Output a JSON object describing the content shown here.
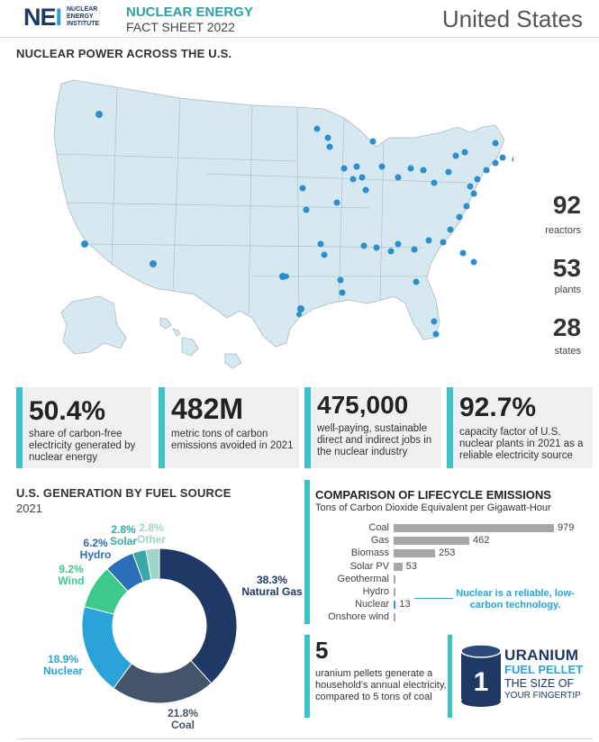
{
  "header": {
    "logo_mark": "NEI",
    "logo_text": "NUCLEAR ENERGY INSTITUTE",
    "title": "NUCLEAR ENERGY",
    "subtitle": "FACT SHEET 2022",
    "country": "United States"
  },
  "map": {
    "title": "NUCLEAR POWER ACROSS THE U.S.",
    "stats": [
      {
        "value": "92",
        "label": "reactors"
      },
      {
        "value": "53",
        "label": "plants"
      },
      {
        "value": "28",
        "label": "states"
      }
    ],
    "colors": {
      "land": "#d6e8f0",
      "border": "#a9b9c4",
      "marker": "#2a8fcc"
    }
  },
  "key_stats": [
    {
      "value": "50.4%",
      "desc": "share of carbon-free electricity generated by nuclear energy"
    },
    {
      "value": "482M",
      "desc": "metric tons of carbon emissions avoided in 2021"
    },
    {
      "value": "475,000",
      "desc": "well-paying, sustainable direct and indirect jobs in the nuclear industry"
    },
    {
      "value": "92.7%",
      "desc": "capacity factor of U.S. nuclear plants in 2021 as a reliable electricity source"
    }
  ],
  "generation": {
    "title": "U.S. GENERATION BY FUEL SOURCE",
    "year": "2021"
  },
  "emissions": {
    "title": "COMPARISON OF LIFECYCLE EMISSIONS",
    "subtitle": "Tons of Carbon Dioxide Equivalent per Gigawatt-Hour",
    "note": "Nuclear is a reliable, low-carbon technology."
  },
  "uranium": {
    "value": "5",
    "desc": "uranium pellets generate a household's annual electricity, compared to 5 tons of coal",
    "pellet_label": "1",
    "line1": "URANIUM",
    "line2": "FUEL PELLET",
    "line3": "THE SIZE OF",
    "line4": "YOUR FINGERTIP"
  },
  "chart_data": [
    {
      "type": "pie",
      "title": "U.S. GENERATION BY FUEL SOURCE",
      "subtitle": "2021",
      "categories": [
        "Natural Gas",
        "Coal",
        "Nuclear",
        "Wind",
        "Hydro",
        "Solar",
        "Other"
      ],
      "values": [
        38.3,
        21.8,
        18.9,
        9.2,
        6.2,
        2.8,
        2.8
      ],
      "labels": [
        "38.3%",
        "21.8%",
        "18.9%",
        "9.2%",
        "6.2%",
        "2.8%",
        "2.8%"
      ],
      "colors": [
        "#1f3864",
        "#44546a",
        "#2aa3d8",
        "#3cc98a",
        "#2a6fb8",
        "#3aa8a8",
        "#9fd6c6"
      ]
    },
    {
      "type": "bar",
      "title": "COMPARISON OF LIFECYCLE EMISSIONS",
      "subtitle": "Tons of Carbon Dioxide Equivalent per Gigawatt-Hour",
      "categories": [
        "Coal",
        "Gas",
        "Biomass",
        "Solar PV",
        "Geothermal",
        "Hydro",
        "Nuclear",
        "Onshore wind"
      ],
      "values": [
        979,
        462,
        253,
        53,
        null,
        null,
        13,
        null
      ],
      "value_labels": [
        "979",
        "462",
        "253",
        "53",
        "",
        "",
        "13",
        ""
      ],
      "xlim": [
        0,
        979
      ]
    }
  ]
}
